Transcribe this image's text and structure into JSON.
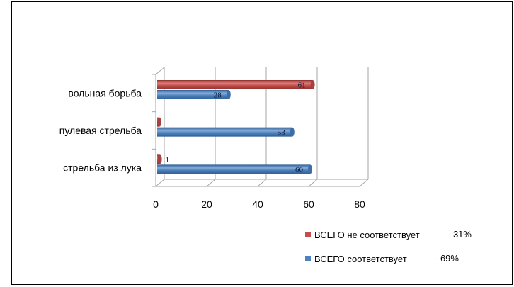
{
  "chart_data": {
    "type": "bar",
    "orientation": "horizontal",
    "categories": [
      "вольная борьба",
      "пулевая стрельба",
      "стрельба из лука"
    ],
    "series": [
      {
        "name": "ВСЕГО не соответствует",
        "values": [
          61,
          0,
          1
        ],
        "labels": [
          "61",
          "",
          "1"
        ],
        "color": "#c0504d",
        "legend_suffix": "- 31%"
      },
      {
        "name": "ВСЕГО соответствует",
        "values": [
          28,
          53,
          60
        ],
        "labels": [
          "28",
          "53",
          "60"
        ],
        "color": "#4f81bd",
        "legend_suffix": "- 69%"
      }
    ],
    "xlim": [
      0,
      80
    ],
    "xticks": [
      "0",
      "20",
      "40",
      "60",
      "80"
    ],
    "grid": true,
    "legend_position": "bottom-right",
    "style": "3d-cylinder"
  }
}
